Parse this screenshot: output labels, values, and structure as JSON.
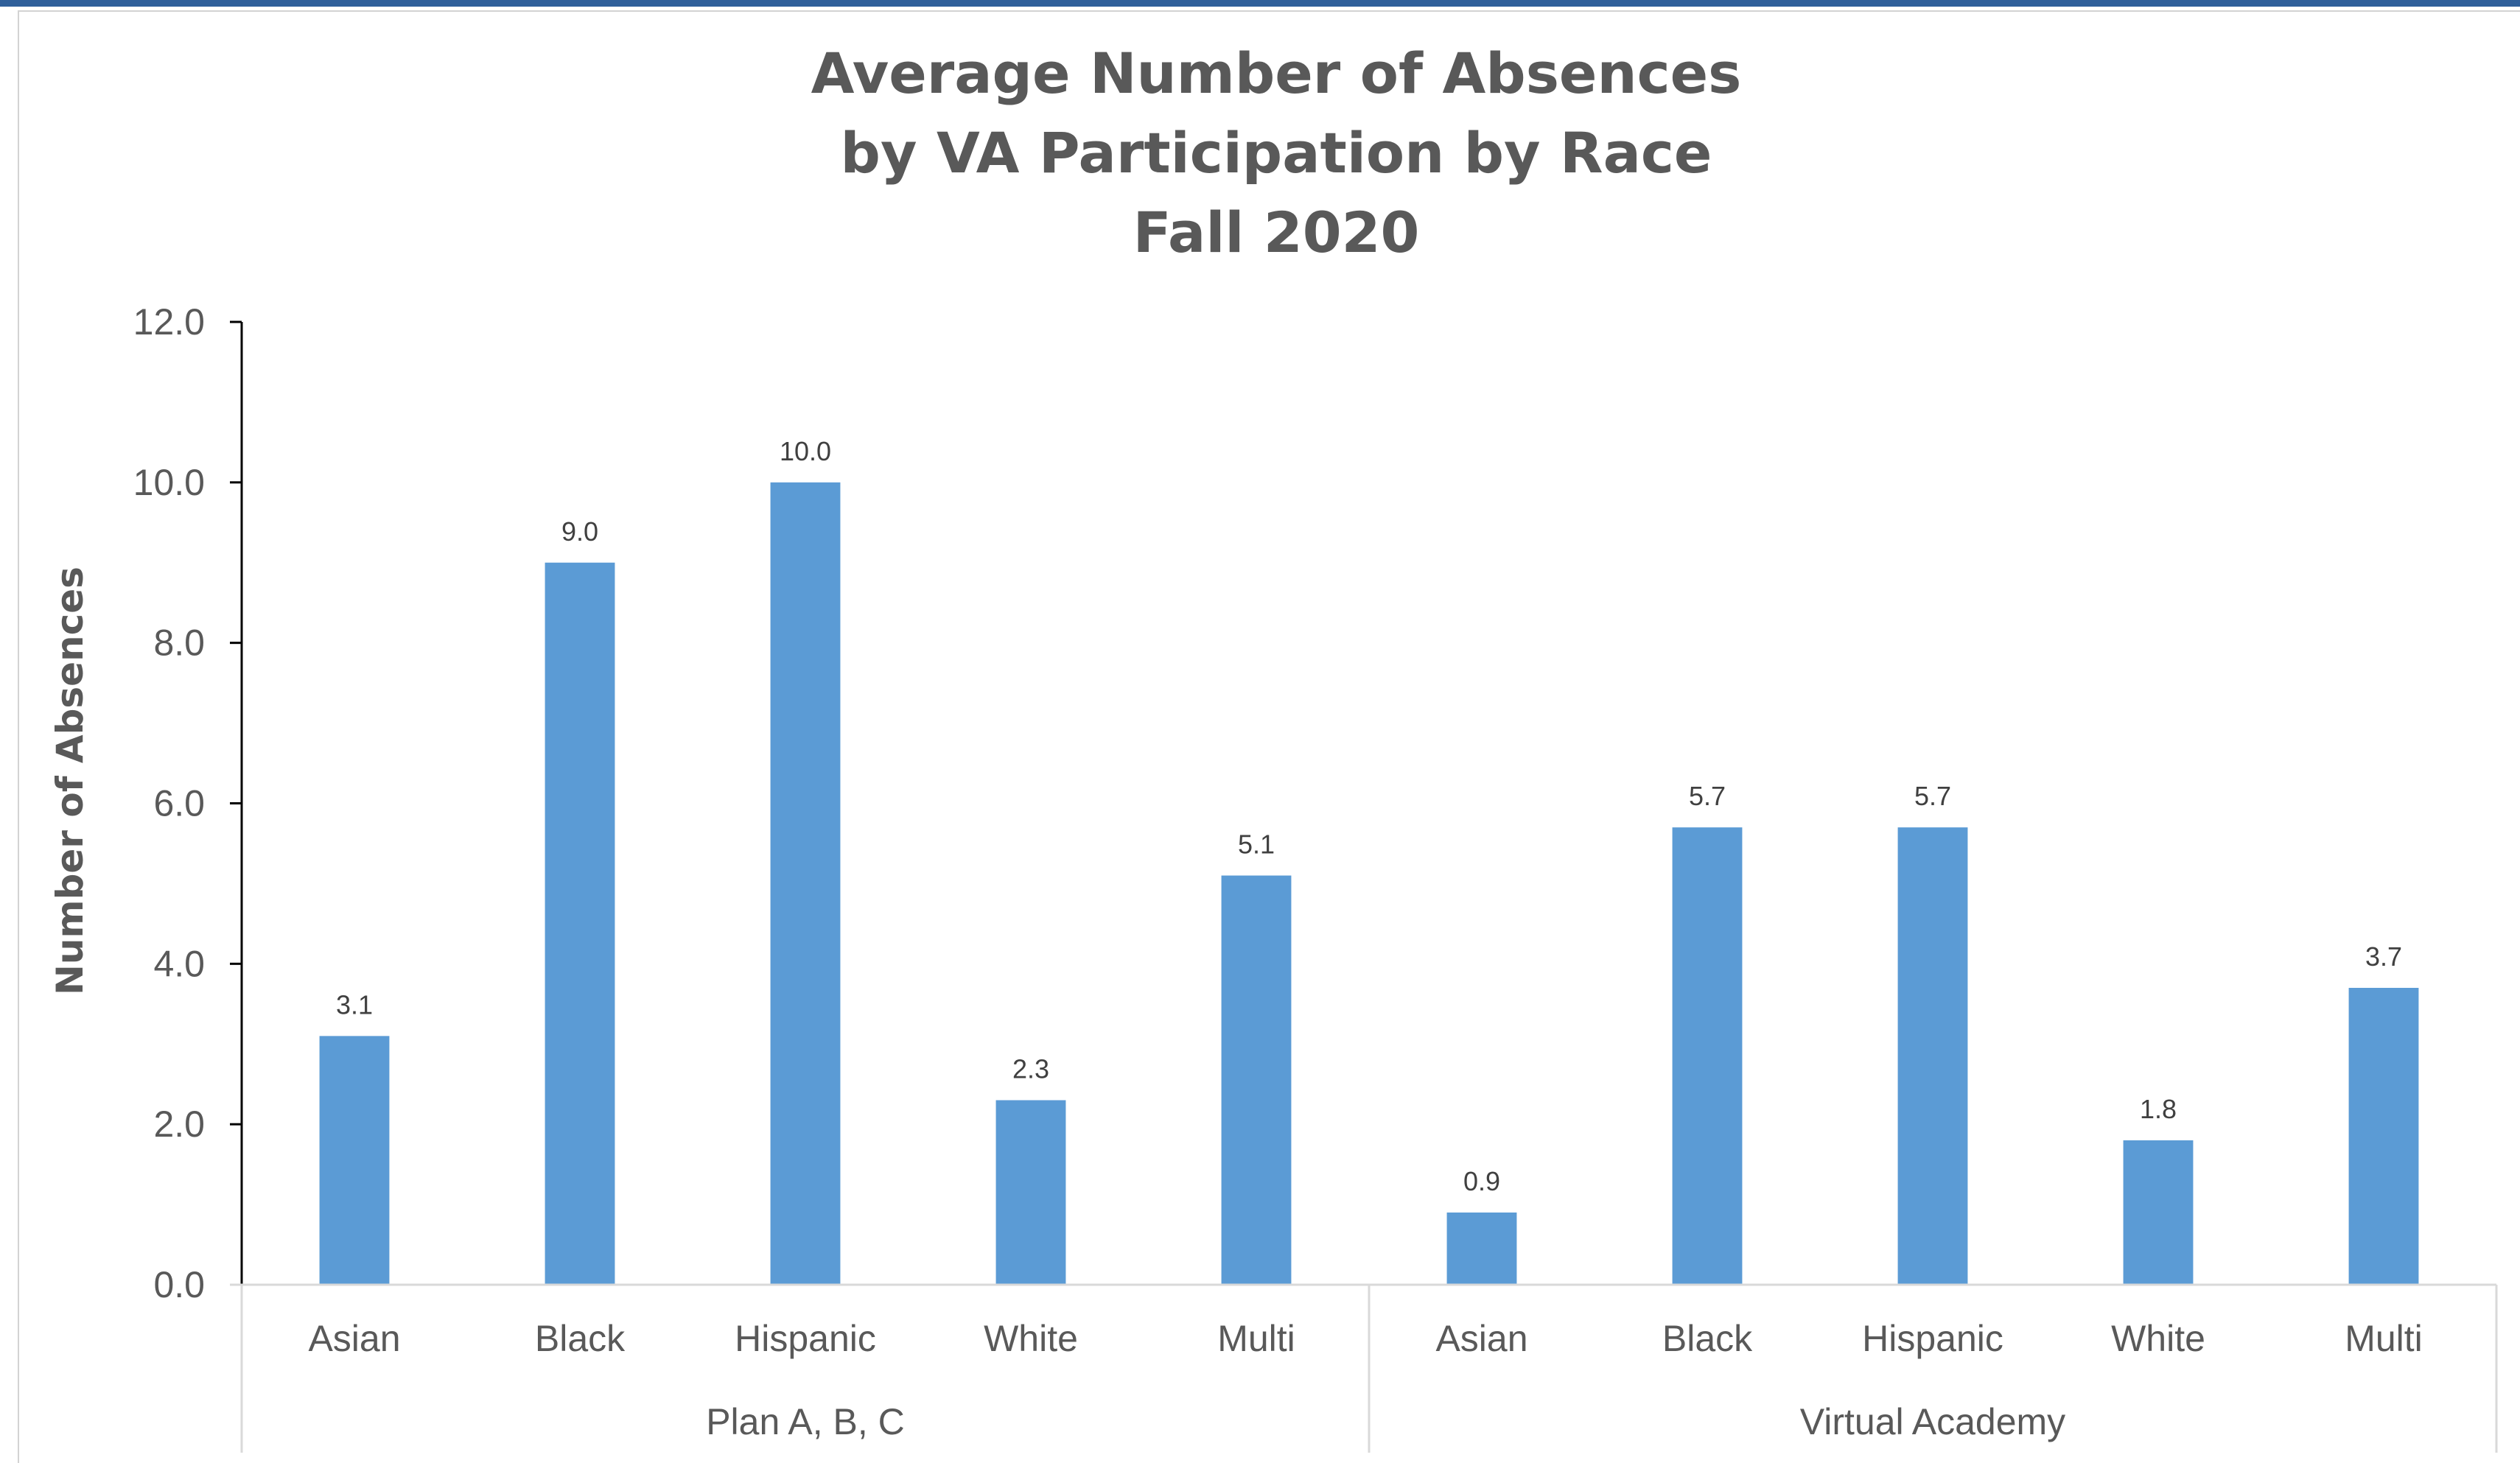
{
  "chart_data": {
    "type": "bar",
    "title": [
      "Average Number of Absences",
      "by VA Participation by Race",
      "Fall 2020"
    ],
    "xlabel": "",
    "ylabel": "Number of Absences",
    "ylim": [
      0,
      12
    ],
    "yticks": [
      "0.0",
      "2.0",
      "4.0",
      "6.0",
      "8.0",
      "10.0",
      "12.0"
    ],
    "ytick_values": [
      0,
      2,
      4,
      6,
      8,
      10,
      12
    ],
    "grid": false,
    "legend": "none",
    "bar_color": "#5b9bd5",
    "groups": [
      {
        "name": "Plan A, B, C",
        "categories": [
          "Asian",
          "Black",
          "Hispanic",
          "White",
          "Multi"
        ],
        "values": [
          3.1,
          9.0,
          10.0,
          2.3,
          5.1
        ],
        "labels": [
          "3.1",
          "9.0",
          "10.0",
          "2.3",
          "5.1"
        ]
      },
      {
        "name": "Virtual Academy",
        "categories": [
          "Asian",
          "Black",
          "Hispanic",
          "White",
          "Multi"
        ],
        "values": [
          0.9,
          5.7,
          5.7,
          1.8,
          3.7
        ],
        "labels": [
          "0.9",
          "5.7",
          "5.7",
          "1.8",
          "3.7"
        ]
      }
    ]
  }
}
